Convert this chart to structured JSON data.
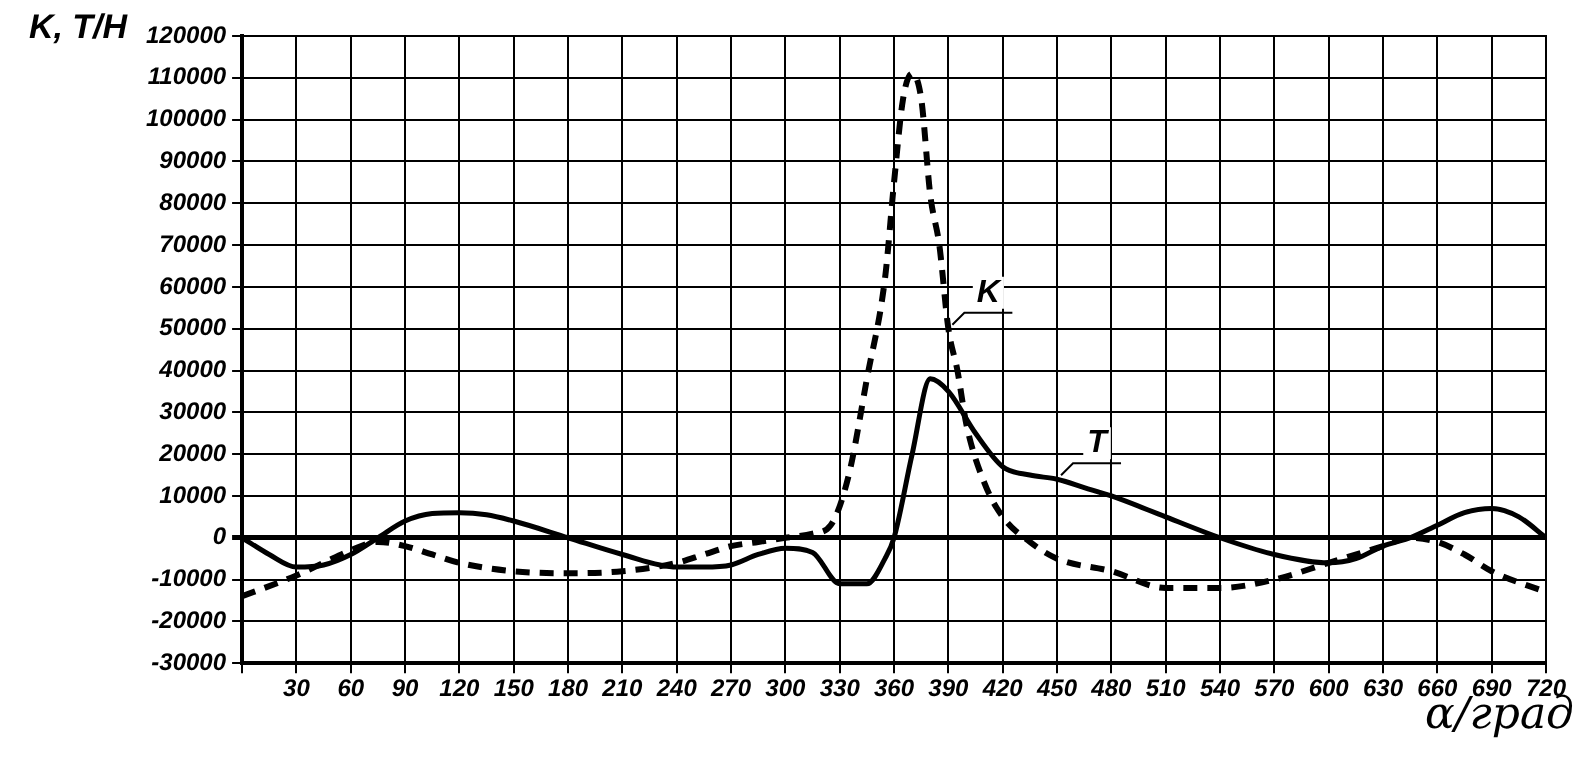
{
  "chart_data": {
    "type": "line",
    "ylabel": "K, T/H",
    "xlabel": "α/град",
    "xlim": [
      0,
      720
    ],
    "xticks": [
      {
        "value": 0,
        "label": null
      },
      30,
      60,
      90,
      120,
      150,
      180,
      210,
      240,
      270,
      300,
      330,
      360,
      390,
      420,
      450,
      480,
      510,
      540,
      570,
      600,
      630,
      660,
      690,
      720
    ],
    "ylim": [
      -30000,
      120000
    ],
    "yticks": [
      -30000,
      -20000,
      -10000,
      0,
      10000,
      20000,
      30000,
      40000,
      50000,
      60000,
      70000,
      80000,
      90000,
      100000,
      110000,
      120000
    ],
    "grid": true,
    "legend": false,
    "marker": "none",
    "series": [
      {
        "name": "K",
        "color": "#000000",
        "line_style": "dashed",
        "x": [
          0,
          30,
          45,
          60,
          75,
          90,
          105,
          120,
          150,
          180,
          210,
          240,
          255,
          270,
          285,
          300,
          315,
          325,
          335,
          345,
          355,
          360,
          365,
          370,
          375,
          380,
          385,
          390,
          395,
          400,
          410,
          420,
          435,
          450,
          480,
          510,
          540,
          570,
          600,
          630,
          645,
          660,
          675,
          690,
          720
        ],
        "values": [
          -14000,
          -9000,
          -6000,
          -3000,
          -1000,
          -2000,
          -4000,
          -6000,
          -8000,
          -8500,
          -8000,
          -6000,
          -4000,
          -2000,
          -1000,
          0,
          1000,
          3000,
          15000,
          38000,
          62000,
          85000,
          105000,
          111000,
          105000,
          82000,
          70000,
          50000,
          40000,
          27000,
          13000,
          5000,
          -1000,
          -5000,
          -8000,
          -12000,
          -12000,
          -10000,
          -6000,
          -2000,
          0,
          -1000,
          -4000,
          -8000,
          -13000
        ]
      },
      {
        "name": "T",
        "color": "#000000",
        "line_style": "solid",
        "x": [
          0,
          15,
          30,
          45,
          60,
          75,
          90,
          105,
          120,
          135,
          150,
          180,
          210,
          240,
          255,
          270,
          285,
          300,
          315,
          330,
          345,
          355,
          360,
          370,
          380,
          390,
          405,
          420,
          435,
          450,
          465,
          480,
          510,
          540,
          570,
          600,
          615,
          630,
          645,
          660,
          675,
          690,
          705,
          720
        ],
        "values": [
          0,
          -4000,
          -7000,
          -6500,
          -4000,
          0,
          4000,
          5800,
          6000,
          5500,
          4000,
          0,
          -4000,
          -7000,
          -7000,
          -6500,
          -4000,
          -2500,
          -3500,
          -11000,
          -11000,
          -5000,
          0,
          20000,
          38000,
          35000,
          25000,
          17000,
          15000,
          14000,
          12000,
          10000,
          5000,
          0,
          -4000,
          -6000,
          -5000,
          -2000,
          0,
          3000,
          6000,
          7000,
          5000,
          0
        ]
      }
    ]
  }
}
